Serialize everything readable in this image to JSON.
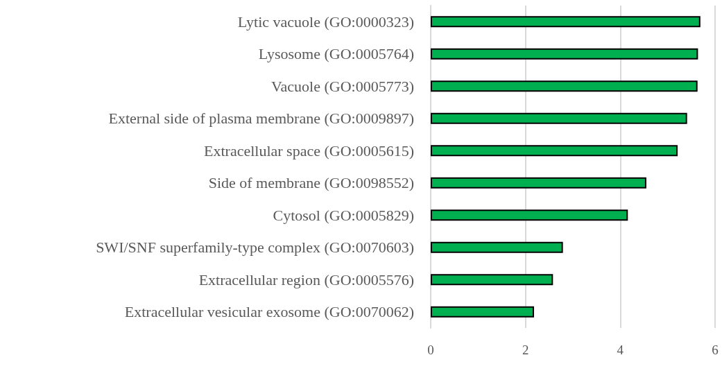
{
  "chart_data": {
    "type": "bar",
    "orientation": "horizontal",
    "categories": [
      "Lytic vacuole (GO:0000323)",
      "Lysosome (GO:0005764)",
      "Vacuole (GO:0005773)",
      "External side of plasma membrane (GO:0009897)",
      "Extracellular space (GO:0005615)",
      "Side of membrane (GO:0098552)",
      "Cytosol (GO:0005829)",
      "SWI/SNF superfamily-type complex (GO:0070603)",
      "Extracellular region (GO:0005576)",
      "Extracellular vesicular exosome (GO:0070062)"
    ],
    "values": [
      5.69,
      5.64,
      5.63,
      5.41,
      5.21,
      4.55,
      4.16,
      2.79,
      2.58,
      2.18
    ],
    "color": "#00b050",
    "xlim": [
      0,
      6
    ],
    "xticks": [
      0,
      2,
      4,
      6
    ],
    "grid": "x"
  }
}
